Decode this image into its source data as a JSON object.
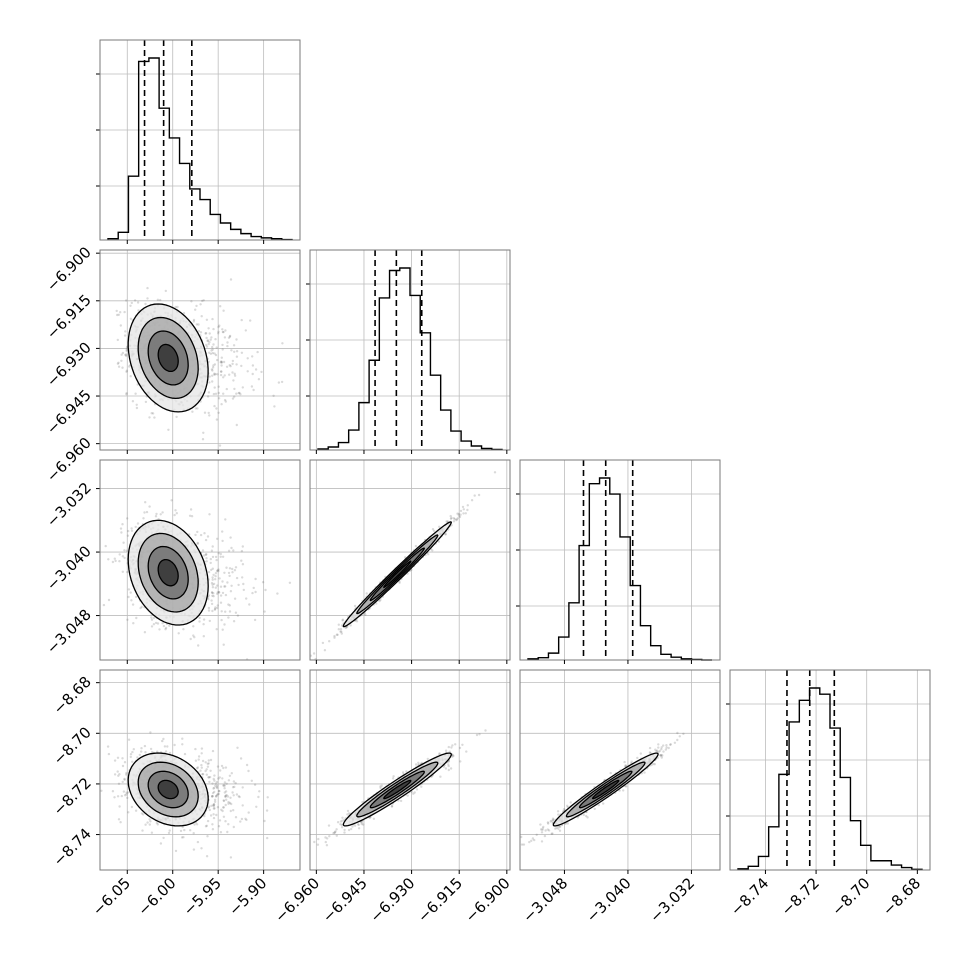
{
  "chart_data": {
    "type": "corner",
    "n_params": 4,
    "grid": true,
    "xlabels": [
      "",
      "",
      "",
      ""
    ],
    "ylabels": [
      "",
      "",
      "",
      ""
    ],
    "params": [
      {
        "range": [
          -6.08,
          -5.86
        ],
        "ticks": [
          -6.05,
          -6.0,
          -5.95,
          -5.9
        ],
        "tick_labels": [
          "−6.05",
          "−6.00",
          "−5.95",
          "−5.90"
        ],
        "quantiles": [
          -6.031,
          -6.01,
          -5.979
        ],
        "hist_counts": [
          3,
          18,
          150,
          420,
          428,
          310,
          240,
          180,
          120,
          95,
          60,
          40,
          25,
          15,
          8,
          5,
          3,
          1
        ]
      },
      {
        "range": [
          -6.962,
          -6.899
        ],
        "ticks": [
          -6.96,
          -6.945,
          -6.93,
          -6.915,
          -6.9
        ],
        "tick_labels": [
          "−6.960",
          "−6.945",
          "−6.930",
          "−6.915",
          "−6.900"
        ],
        "quantiles": [
          -6.9415,
          -6.9348,
          -6.9268
        ],
        "hist_counts": [
          2,
          6,
          15,
          40,
          95,
          180,
          305,
          360,
          365,
          310,
          235,
          150,
          80,
          38,
          18,
          8,
          3,
          1
        ]
      },
      {
        "range": [
          -3.0536,
          -3.0284
        ],
        "ticks": [
          -3.048,
          -3.04,
          -3.032
        ],
        "tick_labels": [
          "−3.048",
          "−3.040",
          "−3.032"
        ],
        "quantiles": [
          -3.0456,
          -3.0428,
          -3.0394
        ],
        "hist_counts": [
          2,
          4,
          12,
          40,
          100,
          200,
          308,
          318,
          290,
          215,
          130,
          60,
          25,
          10,
          5,
          2,
          1,
          0
        ]
      },
      {
        "range": [
          -8.754,
          -8.675
        ],
        "ticks": [
          -8.74,
          -8.72,
          -8.7,
          -8.68
        ],
        "tick_labels": [
          "−8.74",
          "−8.72",
          "−8.70",
          "−8.68"
        ],
        "quantiles": [
          -8.7315,
          -8.7225,
          -8.7128
        ],
        "hist_counts": [
          2,
          6,
          22,
          70,
          155,
          240,
          275,
          295,
          285,
          230,
          150,
          80,
          40,
          15,
          15,
          8,
          4,
          1
        ]
      }
    ],
    "joint": [
      {
        "x": 0,
        "y": 1,
        "mean": [
          -6.005,
          -6.933
        ],
        "sd": [
          0.022,
          0.0085
        ],
        "corr": -0.25
      },
      {
        "x": 0,
        "y": 2,
        "mean": [
          -6.005,
          -3.0426
        ],
        "sd": [
          0.022,
          0.0033
        ],
        "corr": -0.25
      },
      {
        "x": 0,
        "y": 3,
        "mean": [
          -6.005,
          -8.7222
        ],
        "sd": [
          0.022,
          0.0072
        ],
        "corr": -0.25
      },
      {
        "x": 1,
        "y": 2,
        "mean": [
          -6.9345,
          -3.0428
        ],
        "sd": [
          0.0085,
          0.0033
        ],
        "corr": 0.99
      },
      {
        "x": 1,
        "y": 3,
        "mean": [
          -6.9345,
          -8.7222
        ],
        "sd": [
          0.0085,
          0.0072
        ],
        "corr": 0.96
      },
      {
        "x": 2,
        "y": 3,
        "mean": [
          -3.0428,
          -8.7222
        ],
        "sd": [
          0.0033,
          0.0072
        ],
        "corr": 0.97
      }
    ],
    "contour_levels_sigma": [
      0.5,
      1.0,
      1.5,
      2.0
    ]
  }
}
